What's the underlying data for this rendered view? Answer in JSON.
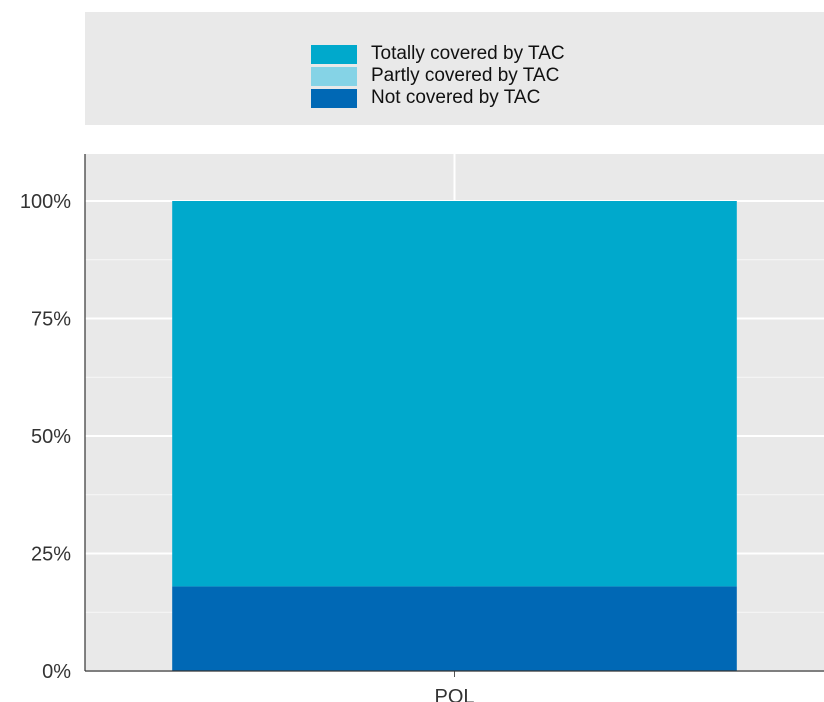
{
  "legend": {
    "items": [
      {
        "label": "Totally covered by TAC",
        "color": "#00a9cc"
      },
      {
        "label": "Partly covered by TAC",
        "color": "#85d3e6"
      },
      {
        "label": "Not covered by TAC",
        "color": "#0068b5"
      }
    ]
  },
  "chart_data": {
    "type": "bar",
    "stacked": true,
    "categories": [
      "POL"
    ],
    "series": [
      {
        "name": "Not covered by TAC",
        "values": [
          18
        ],
        "color": "#0068b5"
      },
      {
        "name": "Partly covered by TAC",
        "values": [
          0
        ],
        "color": "#85d3e6"
      },
      {
        "name": "Totally covered by TAC",
        "values": [
          82
        ],
        "color": "#00a9cc"
      }
    ],
    "ylim": [
      0,
      110
    ],
    "yticks": [
      0,
      25,
      50,
      75,
      100
    ],
    "ytick_labels": [
      "0%",
      "25%",
      "50%",
      "75%",
      "100%"
    ],
    "grid": true,
    "legend_position": "top"
  }
}
